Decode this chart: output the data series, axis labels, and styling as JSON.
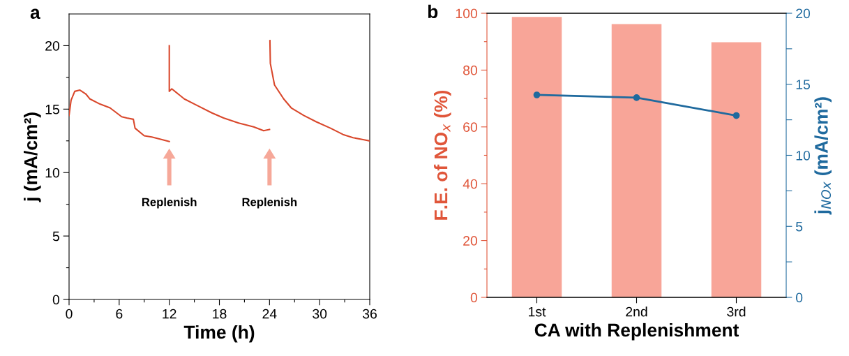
{
  "chart_data": [
    {
      "type": "line",
      "xlabel": "Time (h)",
      "ylabel": "j (mA/cm²)",
      "annotations": [
        "a",
        "Replenish",
        "Replenish"
      ],
      "xlim": [
        0,
        36
      ],
      "ylim": [
        0,
        22.5
      ],
      "xticks": [
        0,
        {
          "value": 3,
          "label": null
        },
        6,
        {
          "value": 9,
          "label": null
        },
        12,
        {
          "value": 15,
          "label": null
        },
        18,
        {
          "value": 21,
          "label": null
        },
        24,
        {
          "value": 27,
          "label": null
        },
        30,
        {
          "value": 33,
          "label": null
        },
        36
      ],
      "yticks": [
        0,
        {
          "value": 2.5,
          "label": null
        },
        5,
        {
          "value": 7.5,
          "label": null
        },
        10,
        {
          "value": 12.5,
          "label": null
        },
        15,
        {
          "value": 17.5,
          "label": null
        },
        20
      ],
      "series": [
        {
          "color": "#d9472b",
          "x": [
            0,
            0.24,
            0.68,
            1.3,
            2.0,
            2.5,
            3.7,
            4.9,
            6.3,
            6.9,
            7.7,
            7.9,
            9.0,
            9.9,
            10.8,
            12.0
          ],
          "values": [
            14.5,
            15.7,
            16.4,
            16.5,
            16.2,
            15.8,
            15.4,
            15.1,
            14.4,
            14.3,
            14.2,
            13.5,
            12.9,
            12.8,
            12.65,
            12.45
          ]
        },
        {
          "color": "#d9472b",
          "x": [
            12.0,
            12.0,
            12.3,
            13.8,
            15.3,
            17.1,
            18.5,
            20.3,
            22.1,
            23.3,
            24.0
          ],
          "values": [
            20.0,
            16.4,
            16.6,
            15.8,
            15.3,
            14.7,
            14.3,
            13.9,
            13.6,
            13.3,
            13.4
          ]
        },
        {
          "color": "#d9472b",
          "x": [
            24.05,
            24.1,
            24.6,
            25.7,
            26.6,
            28.1,
            29.6,
            31.3,
            32.8,
            34.0,
            35.2,
            35.95
          ],
          "values": [
            20.4,
            18.6,
            16.9,
            15.8,
            15.1,
            14.5,
            14.0,
            13.5,
            13.0,
            12.75,
            12.6,
            12.5
          ]
        }
      ]
    },
    {
      "type": "bar",
      "xlabel": "CA with Replenishment",
      "ylabel": "F.E. of NO$_{x}$ (%)",
      "y2label": "j$_{NOx}$ (mA/cm²)",
      "annotations": [
        "b"
      ],
      "categories": [
        "1st",
        "2nd",
        "3rd"
      ],
      "ylim": [
        0,
        100
      ],
      "yticks": [
        0,
        {
          "value": 10,
          "label": null
        },
        20,
        {
          "value": 30,
          "label": null
        },
        40,
        {
          "value": 50,
          "label": null
        },
        60,
        {
          "value": 70,
          "label": null
        },
        80,
        {
          "value": 90,
          "label": null
        },
        100
      ],
      "y2lim": [
        0,
        20
      ],
      "y2ticks": [
        0,
        {
          "value": 2.5,
          "label": null
        },
        5,
        {
          "value": 7.5,
          "label": null
        },
        10,
        {
          "value": 12.5,
          "label": null
        },
        15,
        {
          "value": 17.5,
          "label": null
        },
        20
      ],
      "marker": "circle",
      "series": [
        {
          "type": "bar",
          "color": "#f8a598",
          "values": [
            98.7,
            96.2,
            89.8
          ]
        },
        {
          "type": "line",
          "axis": "y2",
          "color": "#1f6a9e",
          "values": [
            14.25,
            14.06,
            12.8
          ]
        }
      ]
    }
  ]
}
